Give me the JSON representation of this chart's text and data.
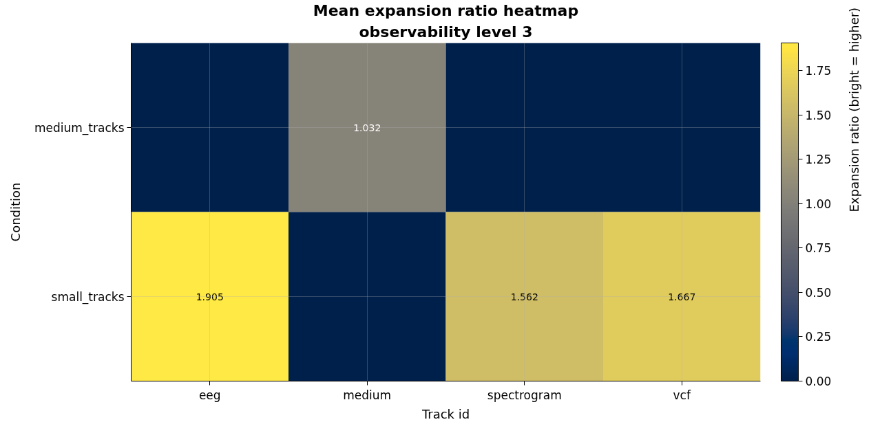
{
  "chart_data": {
    "type": "heatmap",
    "title": "Mean expansion ratio heatmap",
    "subtitle": "observability level 3",
    "xlabel": "Track id",
    "ylabel": "Condition",
    "clabel": "Expansion ratio (bright = higher)",
    "categories": [
      "eeg",
      "medium",
      "spectrogram",
      "vcf"
    ],
    "y_categories": [
      "medium_tracks",
      "small_tracks"
    ],
    "cells": [
      [
        0,
        1.032,
        0,
        0
      ],
      [
        1.905,
        0,
        1.562,
        1.667
      ]
    ],
    "cell_labels": [
      [
        null,
        "1.032",
        null,
        null
      ],
      [
        "1.905",
        null,
        "1.562",
        "1.667"
      ]
    ],
    "clim": [
      0,
      1.905
    ],
    "cticks": [
      {
        "value": 0,
        "label": "0.00"
      },
      {
        "value": 0.25,
        "label": "0.25"
      },
      {
        "value": 0.5,
        "label": "0.50"
      },
      {
        "value": 0.75,
        "label": "0.75"
      },
      {
        "value": 1,
        "label": "1.00"
      },
      {
        "value": 1.25,
        "label": "1.25"
      },
      {
        "value": 1.5,
        "label": "1.50"
      },
      {
        "value": 1.75,
        "label": "1.75"
      }
    ],
    "grid": true
  }
}
